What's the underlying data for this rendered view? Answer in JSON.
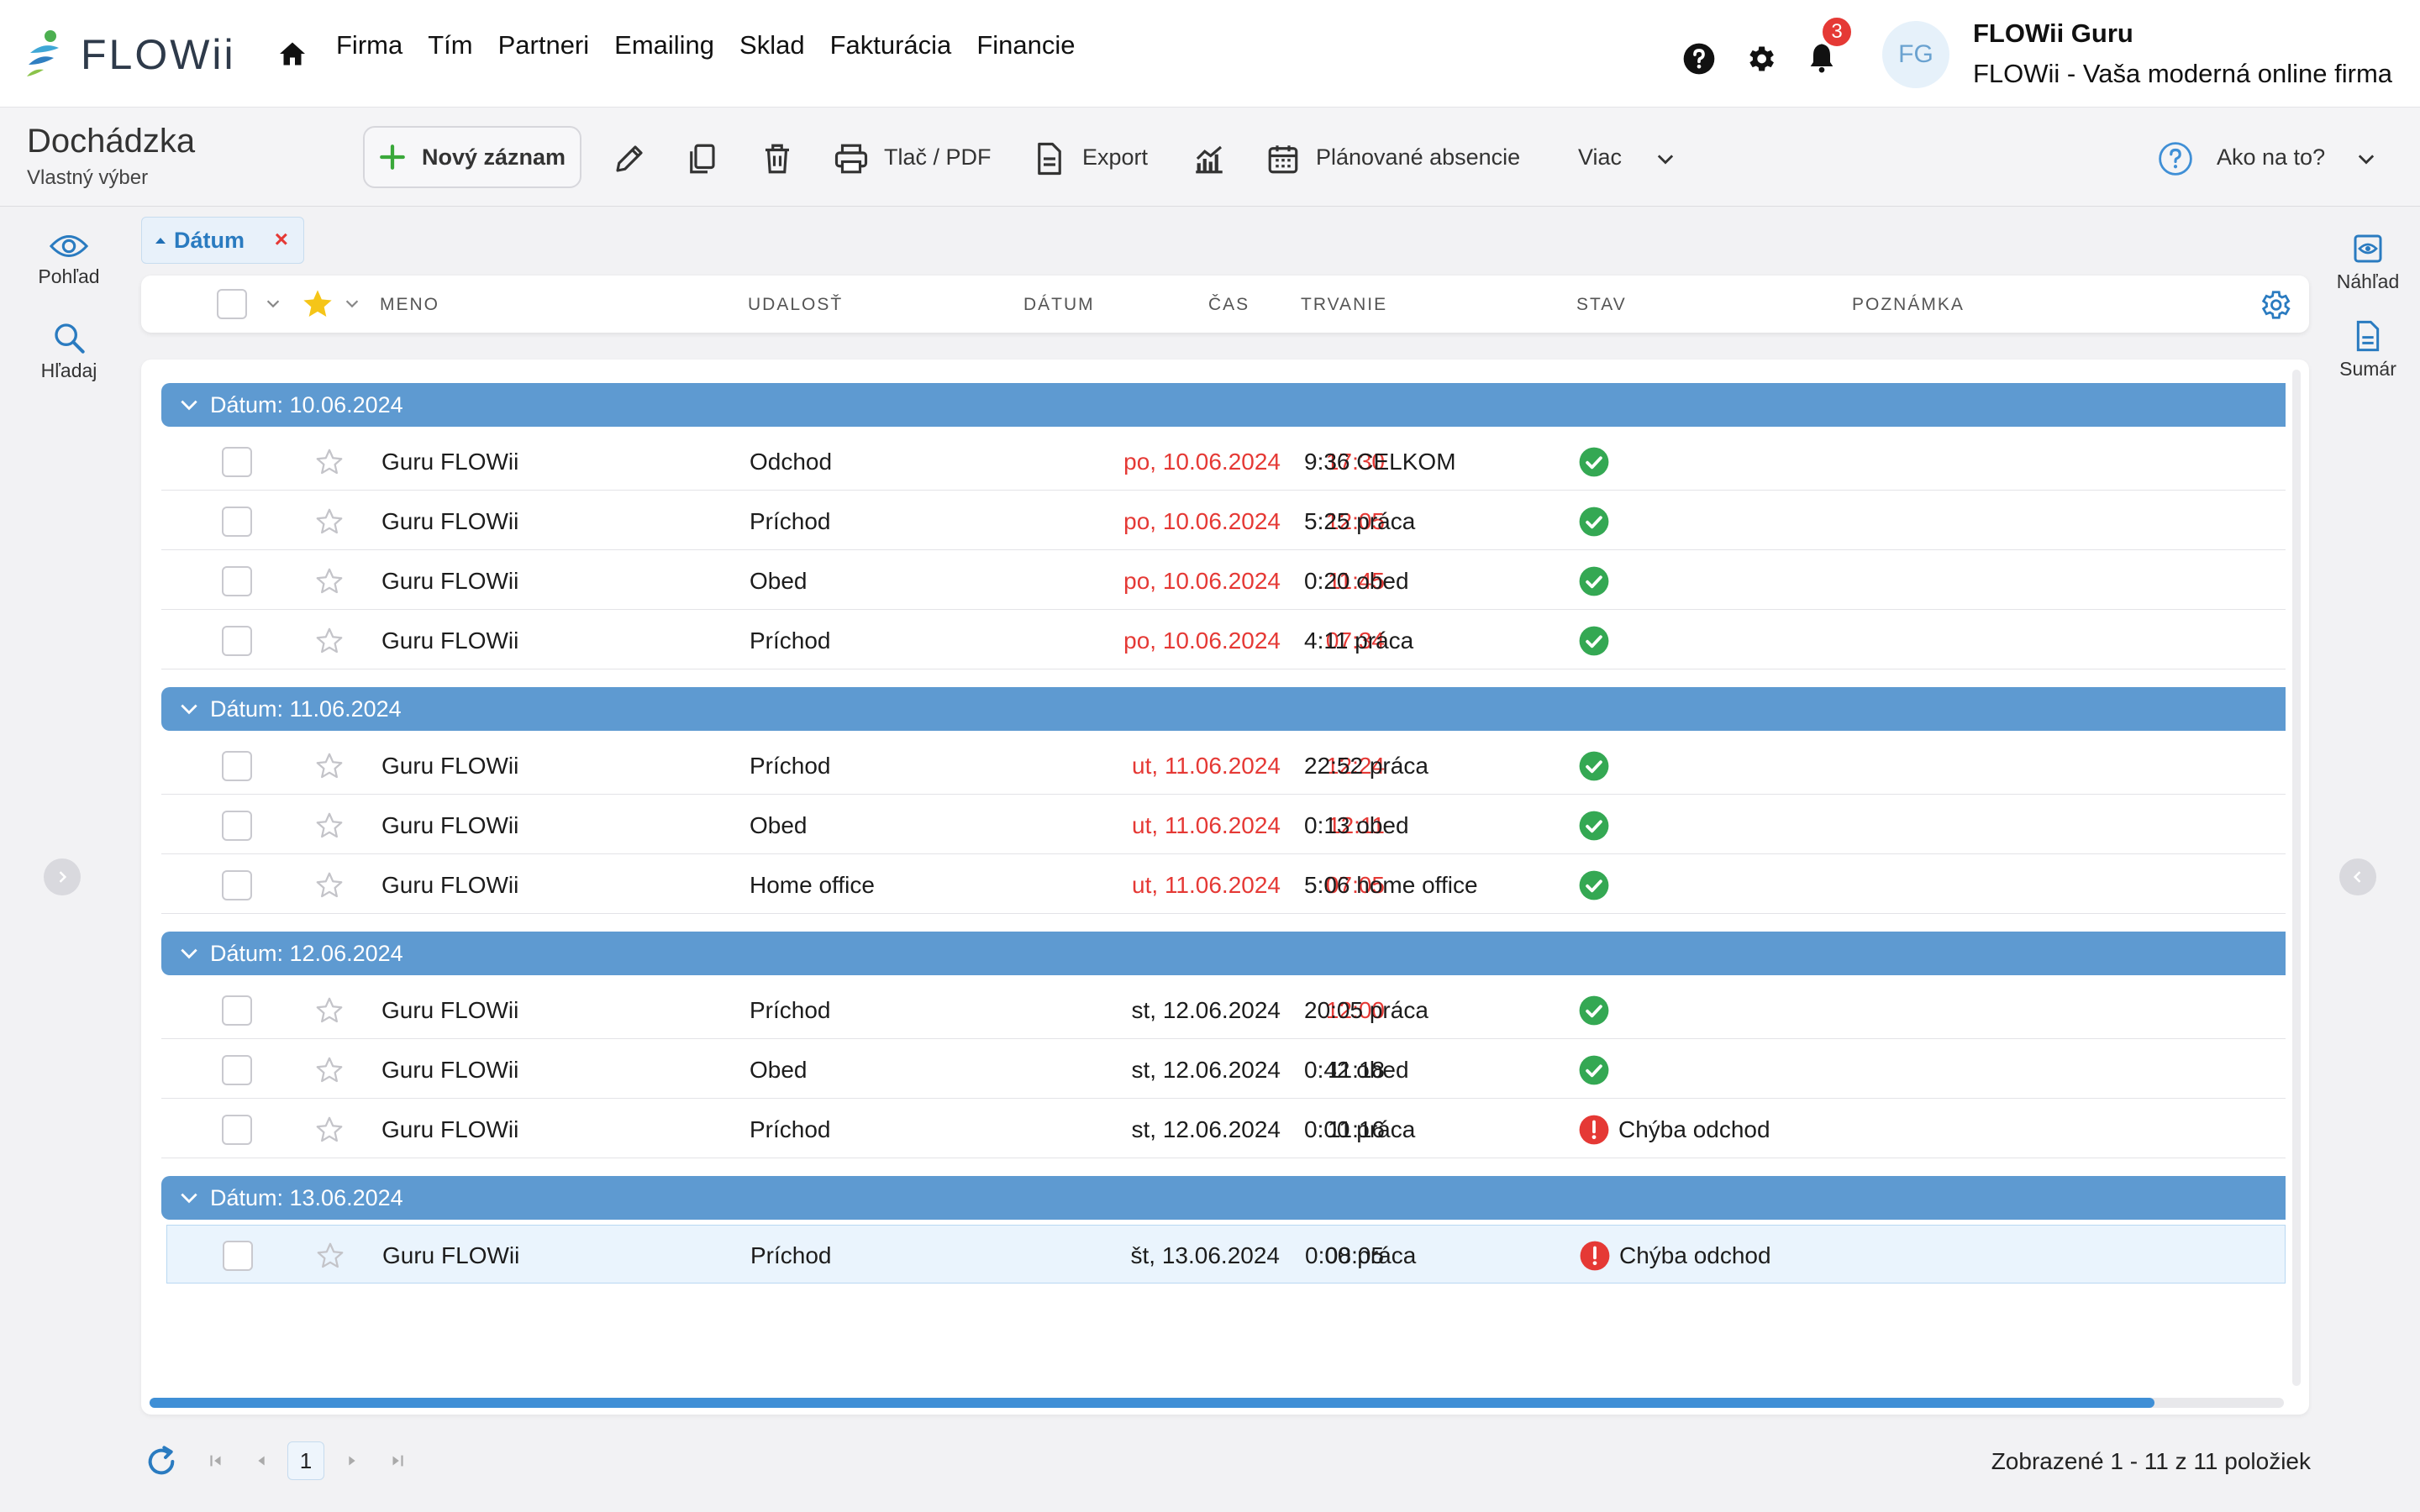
{
  "nav": {
    "logo_text": "FLOWii",
    "menu": [
      "Firma",
      "Tím",
      "Partneri",
      "Emailing",
      "Sklad",
      "Fakturácia",
      "Financie"
    ],
    "notification_count": "3",
    "avatar_initials": "FG",
    "user_name": "FLOWii Guru",
    "user_firm": "FLOWii - Vaša moderná online firma"
  },
  "toolbar": {
    "title": "Dochádzka",
    "subtitle": "Vlastný výber",
    "new_label": "Nový záznam",
    "print_label": "Tlač / PDF",
    "export_label": "Export",
    "absence_label": "Plánované absencie",
    "more_label": "Viac",
    "help_label": "Ako na to?"
  },
  "left_rail": {
    "view_label": "Pohľad",
    "search_label": "Hľadaj"
  },
  "right_rail": {
    "preview_label": "Náhľad",
    "summary_label": "Sumár"
  },
  "filter_chip": {
    "label": "Dátum",
    "remove": "×"
  },
  "columns": {
    "name": "MENO",
    "event": "UDALOSŤ",
    "date": "DÁTUM",
    "time": "ČAS",
    "duration": "TRVANIE",
    "status": "STAV",
    "note": "POZNÁMKA"
  },
  "groups": [
    {
      "label": "Dátum: 10.06.2024",
      "rows": [
        {
          "name": "Guru FLOWii",
          "event": "Odchod",
          "date": "po, 10.06.2024",
          "time": "17:30",
          "duration": "9:36 CELKOM",
          "date_red": true,
          "time_red": true,
          "status": "ok",
          "status_text": ""
        },
        {
          "name": "Guru FLOWii",
          "event": "Príchod",
          "date": "po, 10.06.2024",
          "time": "12:05",
          "duration": "5:25 práca",
          "date_red": true,
          "time_red": true,
          "status": "ok",
          "status_text": ""
        },
        {
          "name": "Guru FLOWii",
          "event": "Obed",
          "date": "po, 10.06.2024",
          "time": "11:45",
          "duration": "0:20 obed",
          "date_red": true,
          "time_red": true,
          "status": "ok",
          "status_text": ""
        },
        {
          "name": "Guru FLOWii",
          "event": "Príchod",
          "date": "po, 10.06.2024",
          "time": "07:34",
          "duration": "4:11 práca",
          "date_red": true,
          "time_red": true,
          "status": "ok",
          "status_text": ""
        }
      ]
    },
    {
      "label": "Dátum: 11.06.2024",
      "rows": [
        {
          "name": "Guru FLOWii",
          "event": "Príchod",
          "date": "ut, 11.06.2024",
          "time": "12:24",
          "duration": "22:52 práca",
          "date_red": true,
          "time_red": true,
          "status": "ok",
          "status_text": ""
        },
        {
          "name": "Guru FLOWii",
          "event": "Obed",
          "date": "ut, 11.06.2024",
          "time": "12:11",
          "duration": "0:13 obed",
          "date_red": true,
          "time_red": true,
          "status": "ok",
          "status_text": ""
        },
        {
          "name": "Guru FLOWii",
          "event": "Home office",
          "date": "ut, 11.06.2024",
          "time": "07:05",
          "duration": "5:06 home office",
          "date_red": true,
          "time_red": true,
          "status": "ok",
          "status_text": ""
        }
      ]
    },
    {
      "label": "Dátum: 12.06.2024",
      "rows": [
        {
          "name": "Guru FLOWii",
          "event": "Príchod",
          "date": "st, 12.06.2024",
          "time": "12:00",
          "duration": "20:05 práca",
          "date_red": false,
          "time_red": true,
          "status": "ok",
          "status_text": ""
        },
        {
          "name": "Guru FLOWii",
          "event": "Obed",
          "date": "st, 12.06.2024",
          "time": "11:18",
          "duration": "0:42 obed",
          "date_red": false,
          "time_red": false,
          "status": "ok",
          "status_text": ""
        },
        {
          "name": "Guru FLOWii",
          "event": "Príchod",
          "date": "st, 12.06.2024",
          "time": "11:16",
          "duration": "0:00 práca",
          "date_red": false,
          "time_red": false,
          "status": "error",
          "status_text": "Chýba odchod"
        }
      ]
    },
    {
      "label": "Dátum: 13.06.2024",
      "rows": [
        {
          "name": "Guru FLOWii",
          "event": "Príchod",
          "date": "št, 13.06.2024",
          "time": "08:05",
          "duration": "0:00 práca",
          "date_red": false,
          "time_red": false,
          "status": "error",
          "status_text": "Chýba odchod",
          "selected": true
        }
      ]
    }
  ],
  "pager": {
    "current_page": "1",
    "info": "Zobrazené 1 - 11 z 11 položiek"
  },
  "colors": {
    "group_bar": "#5e9ad1",
    "ok_green": "#34a853",
    "error_red": "#e53935",
    "accent_blue": "#3f8fd6"
  }
}
